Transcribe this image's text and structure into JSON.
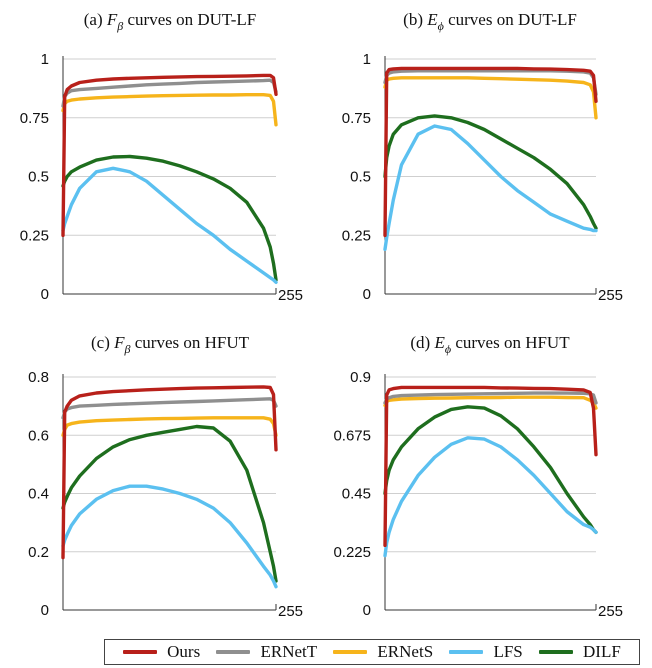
{
  "colors": {
    "Ours": "#b8201a",
    "ERNetT": "#8f8f8f",
    "ERNetS": "#f6b41b",
    "LFS": "#5bc0f0",
    "DILF": "#1e6e1e"
  },
  "legend": [
    "Ours",
    "ERNetT",
    "ERNetS",
    "LFS",
    "DILF"
  ],
  "chart_data": [
    {
      "type": "line",
      "title_prefix": "(a) ",
      "title_sym": "F",
      "title_sub": "β",
      "title_suffix": " curves on DUT-LF",
      "xlim": [
        0,
        255
      ],
      "ylim": [
        0,
        1
      ],
      "yticks": [
        "0",
        "0.25",
        "0.5",
        "0.75",
        "1"
      ],
      "xtick_label": "255",
      "x": [
        0,
        2,
        5,
        10,
        20,
        40,
        60,
        80,
        100,
        120,
        140,
        160,
        180,
        200,
        220,
        240,
        248,
        252,
        255
      ],
      "series": [
        {
          "name": "Ours",
          "values": [
            0.25,
            0.84,
            0.87,
            0.885,
            0.9,
            0.91,
            0.915,
            0.918,
            0.92,
            0.922,
            0.924,
            0.925,
            0.926,
            0.927,
            0.928,
            0.93,
            0.93,
            0.92,
            0.85
          ]
        },
        {
          "name": "ERNetT",
          "values": [
            0.8,
            0.84,
            0.855,
            0.865,
            0.87,
            0.875,
            0.88,
            0.885,
            0.89,
            0.893,
            0.896,
            0.9,
            0.902,
            0.904,
            0.906,
            0.908,
            0.91,
            0.9,
            0.86
          ]
        },
        {
          "name": "ERNetS",
          "values": [
            0.78,
            0.81,
            0.82,
            0.825,
            0.83,
            0.835,
            0.838,
            0.84,
            0.842,
            0.844,
            0.845,
            0.846,
            0.847,
            0.847,
            0.848,
            0.848,
            0.845,
            0.82,
            0.72
          ]
        },
        {
          "name": "LFS",
          "values": [
            0.27,
            0.3,
            0.33,
            0.38,
            0.45,
            0.52,
            0.535,
            0.52,
            0.48,
            0.42,
            0.36,
            0.3,
            0.25,
            0.19,
            0.14,
            0.09,
            0.07,
            0.06,
            0.05
          ]
        },
        {
          "name": "DILF",
          "values": [
            0.46,
            0.48,
            0.5,
            0.52,
            0.54,
            0.57,
            0.583,
            0.585,
            0.578,
            0.565,
            0.545,
            0.52,
            0.49,
            0.45,
            0.39,
            0.28,
            0.2,
            0.13,
            0.06
          ]
        }
      ]
    },
    {
      "type": "line",
      "title_prefix": "(b) ",
      "title_sym": "E",
      "title_sub": "ϕ",
      "title_suffix": " curves on DUT-LF",
      "xlim": [
        0,
        255
      ],
      "ylim": [
        0,
        1
      ],
      "yticks": [
        "0",
        "0.25",
        "0.5",
        "0.75",
        "1"
      ],
      "xtick_label": "255",
      "x": [
        0,
        2,
        5,
        10,
        20,
        40,
        60,
        80,
        100,
        120,
        140,
        160,
        180,
        200,
        220,
        240,
        248,
        252,
        255
      ],
      "series": [
        {
          "name": "Ours",
          "values": [
            0.25,
            0.94,
            0.955,
            0.958,
            0.96,
            0.96,
            0.96,
            0.96,
            0.96,
            0.96,
            0.96,
            0.96,
            0.958,
            0.957,
            0.955,
            0.952,
            0.948,
            0.93,
            0.82
          ]
        },
        {
          "name": "ERNetT",
          "values": [
            0.9,
            0.93,
            0.94,
            0.945,
            0.948,
            0.95,
            0.95,
            0.95,
            0.95,
            0.95,
            0.95,
            0.95,
            0.95,
            0.95,
            0.948,
            0.945,
            0.94,
            0.92,
            0.85
          ]
        },
        {
          "name": "ERNetS",
          "values": [
            0.88,
            0.91,
            0.915,
            0.918,
            0.92,
            0.92,
            0.92,
            0.92,
            0.92,
            0.918,
            0.916,
            0.914,
            0.912,
            0.91,
            0.906,
            0.9,
            0.89,
            0.86,
            0.75
          ]
        },
        {
          "name": "LFS",
          "values": [
            0.19,
            0.24,
            0.3,
            0.4,
            0.55,
            0.68,
            0.715,
            0.7,
            0.64,
            0.57,
            0.5,
            0.44,
            0.39,
            0.34,
            0.31,
            0.28,
            0.275,
            0.27,
            0.27
          ]
        },
        {
          "name": "DILF",
          "values": [
            0.5,
            0.58,
            0.63,
            0.68,
            0.72,
            0.75,
            0.758,
            0.75,
            0.73,
            0.7,
            0.66,
            0.62,
            0.58,
            0.53,
            0.47,
            0.38,
            0.33,
            0.3,
            0.28
          ]
        }
      ]
    },
    {
      "type": "line",
      "title_prefix": "(c) ",
      "title_sym": "F",
      "title_sub": "β",
      "title_suffix": " curves on HFUT",
      "xlim": [
        0,
        255
      ],
      "ylim": [
        0,
        0.8
      ],
      "yticks": [
        "0",
        "0.2",
        "0.4",
        "0.6",
        "0.8"
      ],
      "xtick_label": "255",
      "x": [
        0,
        2,
        5,
        10,
        20,
        40,
        60,
        80,
        100,
        120,
        140,
        160,
        180,
        200,
        220,
        240,
        248,
        252,
        255
      ],
      "series": [
        {
          "name": "Ours",
          "values": [
            0.18,
            0.68,
            0.7,
            0.72,
            0.735,
            0.745,
            0.75,
            0.753,
            0.756,
            0.758,
            0.76,
            0.762,
            0.763,
            0.764,
            0.765,
            0.766,
            0.764,
            0.74,
            0.55
          ]
        },
        {
          "name": "ERNetT",
          "values": [
            0.66,
            0.68,
            0.69,
            0.695,
            0.7,
            0.703,
            0.706,
            0.708,
            0.71,
            0.712,
            0.714,
            0.716,
            0.718,
            0.72,
            0.722,
            0.724,
            0.725,
            0.72,
            0.7
          ]
        },
        {
          "name": "ERNetS",
          "values": [
            0.6,
            0.62,
            0.635,
            0.64,
            0.645,
            0.65,
            0.652,
            0.654,
            0.656,
            0.657,
            0.658,
            0.659,
            0.66,
            0.66,
            0.66,
            0.66,
            0.655,
            0.64,
            0.6
          ]
        },
        {
          "name": "LFS",
          "values": [
            0.22,
            0.24,
            0.26,
            0.29,
            0.33,
            0.38,
            0.41,
            0.425,
            0.425,
            0.415,
            0.4,
            0.38,
            0.35,
            0.3,
            0.23,
            0.15,
            0.12,
            0.1,
            0.08
          ]
        },
        {
          "name": "DILF",
          "values": [
            0.35,
            0.37,
            0.39,
            0.42,
            0.46,
            0.52,
            0.56,
            0.585,
            0.6,
            0.61,
            0.62,
            0.63,
            0.625,
            0.58,
            0.48,
            0.3,
            0.2,
            0.15,
            0.1
          ]
        }
      ]
    },
    {
      "type": "line",
      "title_prefix": "(d) ",
      "title_sym": "E",
      "title_sub": "ϕ",
      "title_suffix": " curves on HFUT",
      "xlim": [
        0,
        255
      ],
      "ylim": [
        0,
        0.9
      ],
      "yticks": [
        "0",
        "0.225",
        "0.45",
        "0.675",
        "0.9"
      ],
      "xtick_label": "255",
      "x": [
        0,
        2,
        5,
        10,
        20,
        40,
        60,
        80,
        100,
        120,
        140,
        160,
        180,
        200,
        220,
        240,
        248,
        252,
        255
      ],
      "series": [
        {
          "name": "Ours",
          "values": [
            0.25,
            0.83,
            0.85,
            0.855,
            0.86,
            0.86,
            0.86,
            0.86,
            0.86,
            0.86,
            0.858,
            0.857,
            0.856,
            0.855,
            0.853,
            0.85,
            0.84,
            0.78,
            0.6
          ]
        },
        {
          "name": "ERNetT",
          "values": [
            0.8,
            0.815,
            0.82,
            0.825,
            0.828,
            0.83,
            0.832,
            0.833,
            0.834,
            0.835,
            0.836,
            0.837,
            0.838,
            0.838,
            0.838,
            0.837,
            0.835,
            0.83,
            0.8
          ]
        },
        {
          "name": "ERNetS",
          "values": [
            0.79,
            0.805,
            0.81,
            0.812,
            0.815,
            0.817,
            0.818,
            0.819,
            0.82,
            0.82,
            0.821,
            0.822,
            0.822,
            0.822,
            0.821,
            0.82,
            0.81,
            0.8,
            0.78
          ]
        },
        {
          "name": "LFS",
          "values": [
            0.21,
            0.26,
            0.3,
            0.35,
            0.42,
            0.52,
            0.59,
            0.64,
            0.665,
            0.66,
            0.63,
            0.58,
            0.52,
            0.45,
            0.38,
            0.33,
            0.32,
            0.31,
            0.3
          ]
        },
        {
          "name": "DILF",
          "values": [
            0.45,
            0.5,
            0.54,
            0.58,
            0.63,
            0.7,
            0.745,
            0.775,
            0.785,
            0.78,
            0.75,
            0.7,
            0.63,
            0.55,
            0.45,
            0.36,
            0.33,
            0.31,
            0.3
          ]
        }
      ]
    }
  ]
}
